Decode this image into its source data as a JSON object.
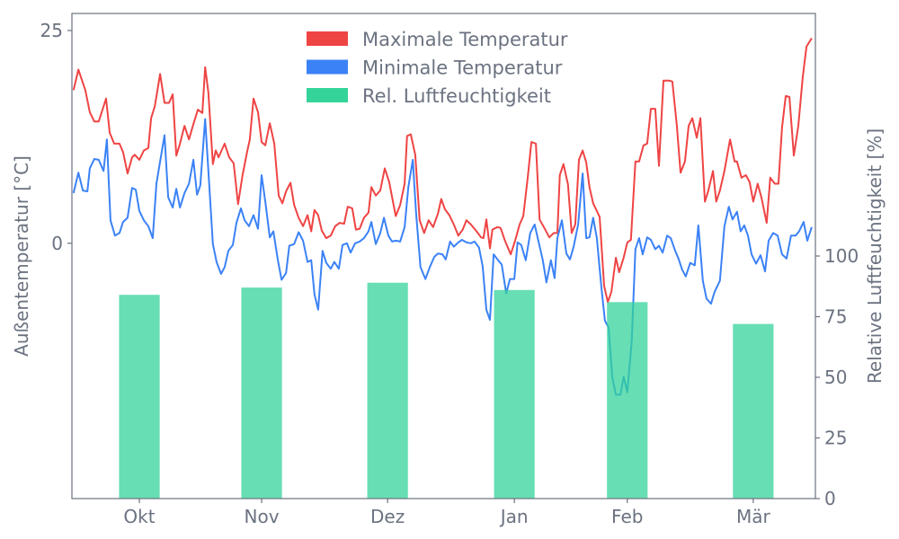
{
  "chart_data": {
    "type": "line",
    "title": "",
    "xlabel": "",
    "ylabel": "Außentemperatur [°C]",
    "ylabel_right": "Relative Luftfeuchtigkeit [%]",
    "x_unit": "days since 1 Oct",
    "xlim": [
      -16.6,
      166.4
    ],
    "ylim": [
      -30,
      27
    ],
    "ylim_right": [
      0,
      200
    ],
    "grid": false,
    "legend_position": "top-center",
    "x_ticks": [
      {
        "label": "Okt",
        "x": 0
      },
      {
        "label": "Nov",
        "x": 30.1
      },
      {
        "label": "Dez",
        "x": 61.1
      },
      {
        "label": "Jan",
        "x": 92.3
      },
      {
        "label": "Feb",
        "x": 120.1
      },
      {
        "label": "Mär",
        "x": 151.1
      }
    ],
    "y_ticks": [
      0,
      25
    ],
    "y_ticks_right": [
      0,
      25,
      50,
      75,
      100
    ],
    "series": [
      {
        "name": "Maximale Temperatur",
        "color": "#ef4444",
        "axis": "left",
        "x": [
          -16.2,
          -15.0,
          -13.3,
          -12.2,
          -11.1,
          -10.0,
          -8.2,
          -7.3,
          -6.2,
          -4.9,
          -4.0,
          -2.9,
          -1.8,
          -1.1,
          0,
          1.1,
          2.2,
          2.9,
          3.8,
          5.1,
          6.2,
          7.3,
          8.2,
          9.1,
          10.0,
          11.1,
          12.2,
          13.3,
          14.4,
          15.5,
          16.2,
          17.0,
          18.1,
          18.8,
          19.5,
          21.0,
          22.1,
          23.2,
          24.3,
          25.4,
          26.5,
          27.2,
          28.1,
          29.2,
          30.1,
          31.0,
          32.1,
          33.2,
          34.3,
          35.2,
          36.1,
          37.2,
          38.1,
          39.2,
          40.3,
          41.4,
          42.3,
          43.1,
          44.0,
          44.9,
          46.0,
          47.1,
          48.2,
          49.3,
          50.4,
          51.3,
          52.4,
          53.3,
          54.2,
          55.3,
          56.4,
          57.1,
          58.2,
          59.3,
          60.4,
          61.5,
          63.1,
          64.2,
          65.3,
          65.9,
          66.8,
          67.9,
          69.0,
          70.1,
          71.2,
          72.3,
          73.5,
          74.3,
          75.2,
          76.3,
          77.4,
          78.5,
          79.6,
          80.5,
          81.6,
          83.0,
          84.1,
          84.7,
          85.4,
          86.3,
          86.9,
          88.1,
          88.9,
          90.0,
          91.4,
          92.5,
          93.6,
          94.5,
          95.6,
          96.5,
          97.6,
          98.5,
          99.8,
          100.9,
          102.0,
          102.9,
          103.5,
          104.4,
          105.5,
          106.4,
          107.3,
          108.2,
          109.1,
          110.0,
          110.8,
          111.7,
          113.3,
          114.4,
          115.3,
          116.2,
          117.3,
          118.1,
          119.2,
          120.1,
          121.0,
          122.1,
          123.0,
          124.1,
          125.0,
          125.9,
          127.0,
          127.9,
          129.0,
          130.5,
          131.2,
          132.3,
          133.2,
          134.3,
          135.2,
          136.1,
          137.2,
          138.1,
          139.2,
          140.0,
          141.2,
          142.0,
          142.9,
          144.0,
          145.4,
          146.5,
          147.1,
          148.2,
          149.3,
          150.2,
          151.1,
          152.2,
          153.1,
          154.4,
          155.3,
          156.4,
          157.3,
          158.2,
          159.1,
          160.0,
          161.1,
          162.2,
          163.3,
          164.2,
          165.5
        ],
        "y": [
          18.0,
          20.4,
          18.0,
          15.4,
          14.3,
          14.3,
          17.0,
          13.0,
          11.7,
          11.7,
          10.7,
          8.2,
          10.1,
          10.4,
          9.8,
          10.9,
          11.2,
          14.7,
          16.1,
          19.9,
          16.5,
          16.5,
          17.5,
          10.3,
          11.7,
          13.8,
          12.2,
          14.0,
          15.7,
          15.3,
          20.7,
          17.7,
          9.3,
          10.9,
          10.1,
          11.7,
          10.1,
          9.4,
          4.6,
          8.0,
          10.7,
          12.2,
          17.0,
          15.4,
          11.9,
          11.5,
          14.1,
          11.7,
          5.6,
          4.7,
          6.1,
          7.1,
          4.5,
          3.0,
          2.0,
          3.3,
          1.4,
          3.9,
          3.3,
          1.5,
          0.6,
          0.9,
          2.0,
          2.4,
          2.3,
          4.3,
          4.1,
          1.6,
          1.7,
          3.0,
          3.6,
          6.6,
          5.6,
          6.2,
          8.8,
          7.2,
          3.2,
          4.5,
          7.0,
          12.6,
          12.8,
          10.4,
          2.7,
          1.2,
          2.7,
          1.9,
          3.5,
          5.2,
          4.0,
          3.3,
          2.2,
          0.9,
          1.6,
          2.7,
          2.2,
          1.4,
          0.7,
          0.6,
          2.8,
          -0.6,
          1.6,
          1.9,
          1.8,
          0.3,
          -1.3,
          0.3,
          2.2,
          3.2,
          7.7,
          11.9,
          11.7,
          2.8,
          1.7,
          0.7,
          1.2,
          1.2,
          8.0,
          9.3,
          6.9,
          1.2,
          2.2,
          9.8,
          10.9,
          9.5,
          6.6,
          4.7,
          3.1,
          -5.0,
          -6.9,
          -5.7,
          -1.7,
          -3.4,
          -1.7,
          0.1,
          0.4,
          9.6,
          9.6,
          11.5,
          11.7,
          15.8,
          15.8,
          9.1,
          19.1,
          19.1,
          19.0,
          13.8,
          8.3,
          9.6,
          13.8,
          14.7,
          12.4,
          14.7,
          4.9,
          6.1,
          8.5,
          4.9,
          6.2,
          8.5,
          12.2,
          9.6,
          9.6,
          7.7,
          8.0,
          7.2,
          4.9,
          7.0,
          5.4,
          2.4,
          7.7,
          7.0,
          7.0,
          13.6,
          17.3,
          17.2,
          10.3,
          13.8,
          19.6,
          23.1,
          24.1
        ]
      },
      {
        "name": "Minimale Temperatur",
        "color": "#3b82f6",
        "axis": "left",
        "x": [
          -16.2,
          -15.0,
          -13.9,
          -12.8,
          -12.2,
          -11.1,
          -10.0,
          -8.8,
          -8.0,
          -7.1,
          -6.0,
          -4.9,
          -4.0,
          -2.9,
          -1.8,
          -0.9,
          0,
          1.1,
          2.2,
          3.3,
          4.2,
          5.1,
          6.2,
          7.1,
          8.2,
          9.1,
          10.0,
          11.1,
          12.2,
          13.3,
          14.2,
          15.0,
          16.2,
          17.0,
          18.1,
          19.0,
          20.1,
          21.0,
          21.9,
          23.0,
          23.9,
          25.0,
          25.9,
          27.0,
          28.1,
          29.2,
          30.1,
          31.0,
          32.1,
          33.0,
          34.1,
          35.0,
          36.1,
          36.9,
          38.1,
          39.2,
          40.3,
          41.4,
          42.3,
          43.1,
          44.0,
          45.1,
          46.0,
          47.1,
          48.0,
          49.1,
          50.0,
          51.1,
          52.0,
          53.1,
          54.2,
          55.3,
          56.4,
          57.1,
          58.2,
          59.3,
          60.2,
          61.3,
          62.2,
          63.1,
          64.2,
          65.3,
          66.2,
          67.3,
          68.1,
          69.2,
          70.4,
          71.5,
          72.6,
          73.5,
          74.6,
          75.4,
          76.5,
          77.4,
          78.5,
          79.4,
          80.5,
          81.6,
          82.5,
          83.6,
          84.5,
          85.4,
          86.3,
          87.2,
          88.3,
          89.2,
          90.3,
          91.2,
          92.3,
          93.1,
          94.0,
          95.1,
          96.2,
          97.3,
          98.2,
          99.3,
          100.2,
          101.3,
          102.2,
          102.9,
          104.0,
          105.1,
          106.0,
          106.9,
          108.0,
          109.1,
          110.0,
          110.8,
          111.7,
          112.6,
          113.7,
          114.6,
          115.5,
          116.4,
          117.3,
          118.4,
          119.2,
          120.1,
          121.2,
          122.1,
          123.0,
          123.9,
          125.0,
          125.9,
          127.0,
          127.9,
          128.8,
          129.9,
          130.8,
          131.9,
          132.7,
          133.6,
          134.5,
          135.6,
          136.7,
          137.6,
          138.7,
          139.6,
          140.7,
          141.6,
          142.9,
          144.0,
          145.1,
          146.0,
          147.1,
          148.0,
          148.9,
          149.8,
          150.7,
          151.8,
          152.9,
          154.0,
          154.9,
          156.0,
          157.1,
          158.2,
          159.3,
          160.4,
          161.5,
          162.4,
          163.5,
          164.4,
          165.5
        ],
        "y": [
          5.9,
          8.3,
          6.2,
          6.1,
          8.8,
          9.9,
          9.8,
          8.5,
          12.2,
          2.7,
          0.9,
          1.2,
          2.5,
          3.0,
          6.5,
          6.3,
          3.8,
          2.7,
          2.0,
          0.6,
          7.0,
          9.6,
          12.7,
          5.4,
          4.2,
          6.4,
          4.2,
          5.9,
          7.0,
          9.8,
          5.7,
          6.8,
          14.6,
          8.5,
          -0.1,
          -2.2,
          -3.6,
          -2.8,
          -0.9,
          -0.2,
          2.4,
          4.1,
          2.7,
          2.0,
          3.3,
          1.7,
          8.0,
          4.9,
          0.7,
          1.4,
          -2.0,
          -4.3,
          -3.5,
          -0.3,
          -0.1,
          1.3,
          0.3,
          -2.2,
          -2.0,
          -6.0,
          -7.8,
          -0.9,
          -2.3,
          -3.0,
          -2.2,
          -3.0,
          -0.2,
          0.0,
          -1.1,
          0.0,
          0.2,
          0.6,
          1.4,
          2.5,
          -0.1,
          1.2,
          3.0,
          0.9,
          0.2,
          0.3,
          0.2,
          1.9,
          6.6,
          9.8,
          3.6,
          -2.8,
          -4.2,
          -2.8,
          -1.6,
          -1.2,
          -1.3,
          -1.9,
          0.2,
          -0.4,
          0.1,
          0.4,
          0.1,
          0.0,
          0.2,
          -0.5,
          -2.7,
          -7.8,
          -9.0,
          -1.3,
          -2.0,
          -2.5,
          -5.9,
          -4.2,
          -4.2,
          0.1,
          -0.2,
          -2.0,
          1.2,
          2.2,
          0.3,
          -2.0,
          -4.6,
          -2.0,
          -4.1,
          0.6,
          2.7,
          -1.2,
          -1.9,
          -0.4,
          2.2,
          8.2,
          0.6,
          0.7,
          3.0,
          0.6,
          -5.0,
          -9.1,
          -9.9,
          -15.7,
          -17.8,
          -17.8,
          -15.7,
          -17.5,
          -11.5,
          -0.7,
          0.6,
          -1.3,
          0.7,
          0.4,
          -0.7,
          -0.3,
          -1.1,
          0.9,
          0.6,
          -0.9,
          -1.8,
          -3.1,
          -3.9,
          -2.3,
          -2.6,
          2.1,
          -4.4,
          -6.5,
          -7.1,
          -5.7,
          -4.4,
          2.0,
          4.3,
          2.8,
          3.7,
          1.4,
          2.1,
          0.9,
          -1.3,
          -2.4,
          -1.4,
          -3.3,
          0.3,
          1.2,
          0.9,
          -1.3,
          -1.8,
          0.9,
          0.9,
          1.4,
          2.5,
          0.3,
          1.9
        ]
      },
      {
        "name": "Rel. Luftfeuchtigkeit",
        "type": "bar",
        "color": "#34d399",
        "axis": "right",
        "categories": [
          "Okt",
          "Nov",
          "Dez",
          "Jan",
          "Feb",
          "Mär"
        ],
        "x": [
          0,
          30.1,
          61.1,
          92.3,
          120.1,
          151.1
        ],
        "values": [
          84,
          87,
          89,
          86,
          81,
          72
        ],
        "bar_width_days": 10
      }
    ]
  }
}
